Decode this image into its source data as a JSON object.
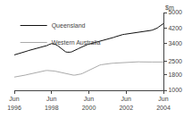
{
  "chart_data": {
    "type": "line",
    "ylabel": "$m",
    "categories": [
      "Jun\n1996",
      null,
      null,
      null,
      null,
      null,
      null,
      null,
      null,
      null,
      null,
      null,
      null,
      null,
      null,
      null,
      null,
      null,
      null,
      null,
      null,
      null,
      null,
      null,
      "Jun\n1998",
      null,
      null,
      null,
      null,
      null,
      null,
      null,
      null,
      null,
      null,
      null,
      null,
      null,
      null,
      null,
      null,
      null,
      null,
      null,
      null,
      null,
      null,
      null,
      "Jun\n2000",
      null,
      null,
      null,
      null,
      null,
      null,
      null,
      null,
      null,
      null,
      null,
      null,
      null,
      null,
      null,
      null,
      null,
      null,
      null,
      null,
      null,
      null,
      null,
      "Jun\n2002",
      null,
      null,
      null,
      null,
      null,
      null,
      null,
      null,
      null,
      null,
      null,
      null,
      null,
      null,
      null,
      null,
      null,
      null,
      null,
      null,
      null,
      null,
      null,
      "Jun\n2004"
    ],
    "series": [
      {
        "name": "Queensland",
        "color": "#111111",
        "values": [
          2820,
          2840,
          2870,
          2900,
          2930,
          2950,
          2970,
          2990,
          3010,
          3040,
          3060,
          3080,
          3110,
          3140,
          3160,
          3180,
          3200,
          3210,
          3230,
          3250,
          3270,
          3300,
          3340,
          3380,
          3400,
          3390,
          3370,
          3340,
          3290,
          3220,
          3150,
          3080,
          3020,
          2980,
          2960,
          2950,
          2960,
          2980,
          3010,
          3050,
          3090,
          3130,
          3170,
          3210,
          3250,
          3290,
          3320,
          3350,
          3370,
          3390,
          3410,
          3430,
          3450,
          3470,
          3490,
          3510,
          3530,
          3555,
          3575,
          3595,
          3615,
          3640,
          3665,
          3695,
          3720,
          3750,
          3780,
          3810,
          3840,
          3860,
          3870,
          3880,
          3890,
          3900,
          3910,
          3920,
          3930,
          3940,
          3950,
          3960,
          3970,
          3980,
          3990,
          4000,
          4010,
          4020,
          4040,
          4060,
          4080,
          4100,
          4130,
          4160,
          4200,
          4260,
          4320,
          4380,
          4430
        ]
      },
      {
        "name": "Western Australia",
        "color": "#aaaaaa",
        "values": [
          1680,
          1690,
          1700,
          1710,
          1720,
          1740,
          1760,
          1780,
          1800,
          1820,
          1840,
          1860,
          1880,
          1900,
          1910,
          1920,
          1940,
          1960,
          1980,
          2000,
          2010,
          2020,
          2020,
          2020,
          2010,
          2000,
          1990,
          1970,
          1950,
          1930,
          1910,
          1890,
          1870,
          1850,
          1830,
          1810,
          1800,
          1790,
          1780,
          1780,
          1790,
          1800,
          1820,
          1840,
          1870,
          1910,
          1950,
          1990,
          2030,
          2070,
          2110,
          2150,
          2195,
          2235,
          2270,
          2295,
          2315,
          2330,
          2345,
          2355,
          2365,
          2375,
          2385,
          2390,
          2395,
          2400,
          2405,
          2410,
          2415,
          2420,
          2430,
          2440,
          2450,
          2455,
          2460,
          2460,
          2465,
          2465,
          2465,
          2465,
          2465,
          2460,
          2455,
          2455,
          2455,
          2455,
          2455,
          2455,
          2455,
          2455,
          2455,
          2455,
          2455,
          2455,
          2455,
          2455,
          2455
        ]
      }
    ],
    "ylim": [
      1000,
      5000
    ],
    "yticks": [
      1000,
      1800,
      2500,
      3400,
      4200,
      5000
    ],
    "grid": false,
    "legend": "upper left"
  }
}
